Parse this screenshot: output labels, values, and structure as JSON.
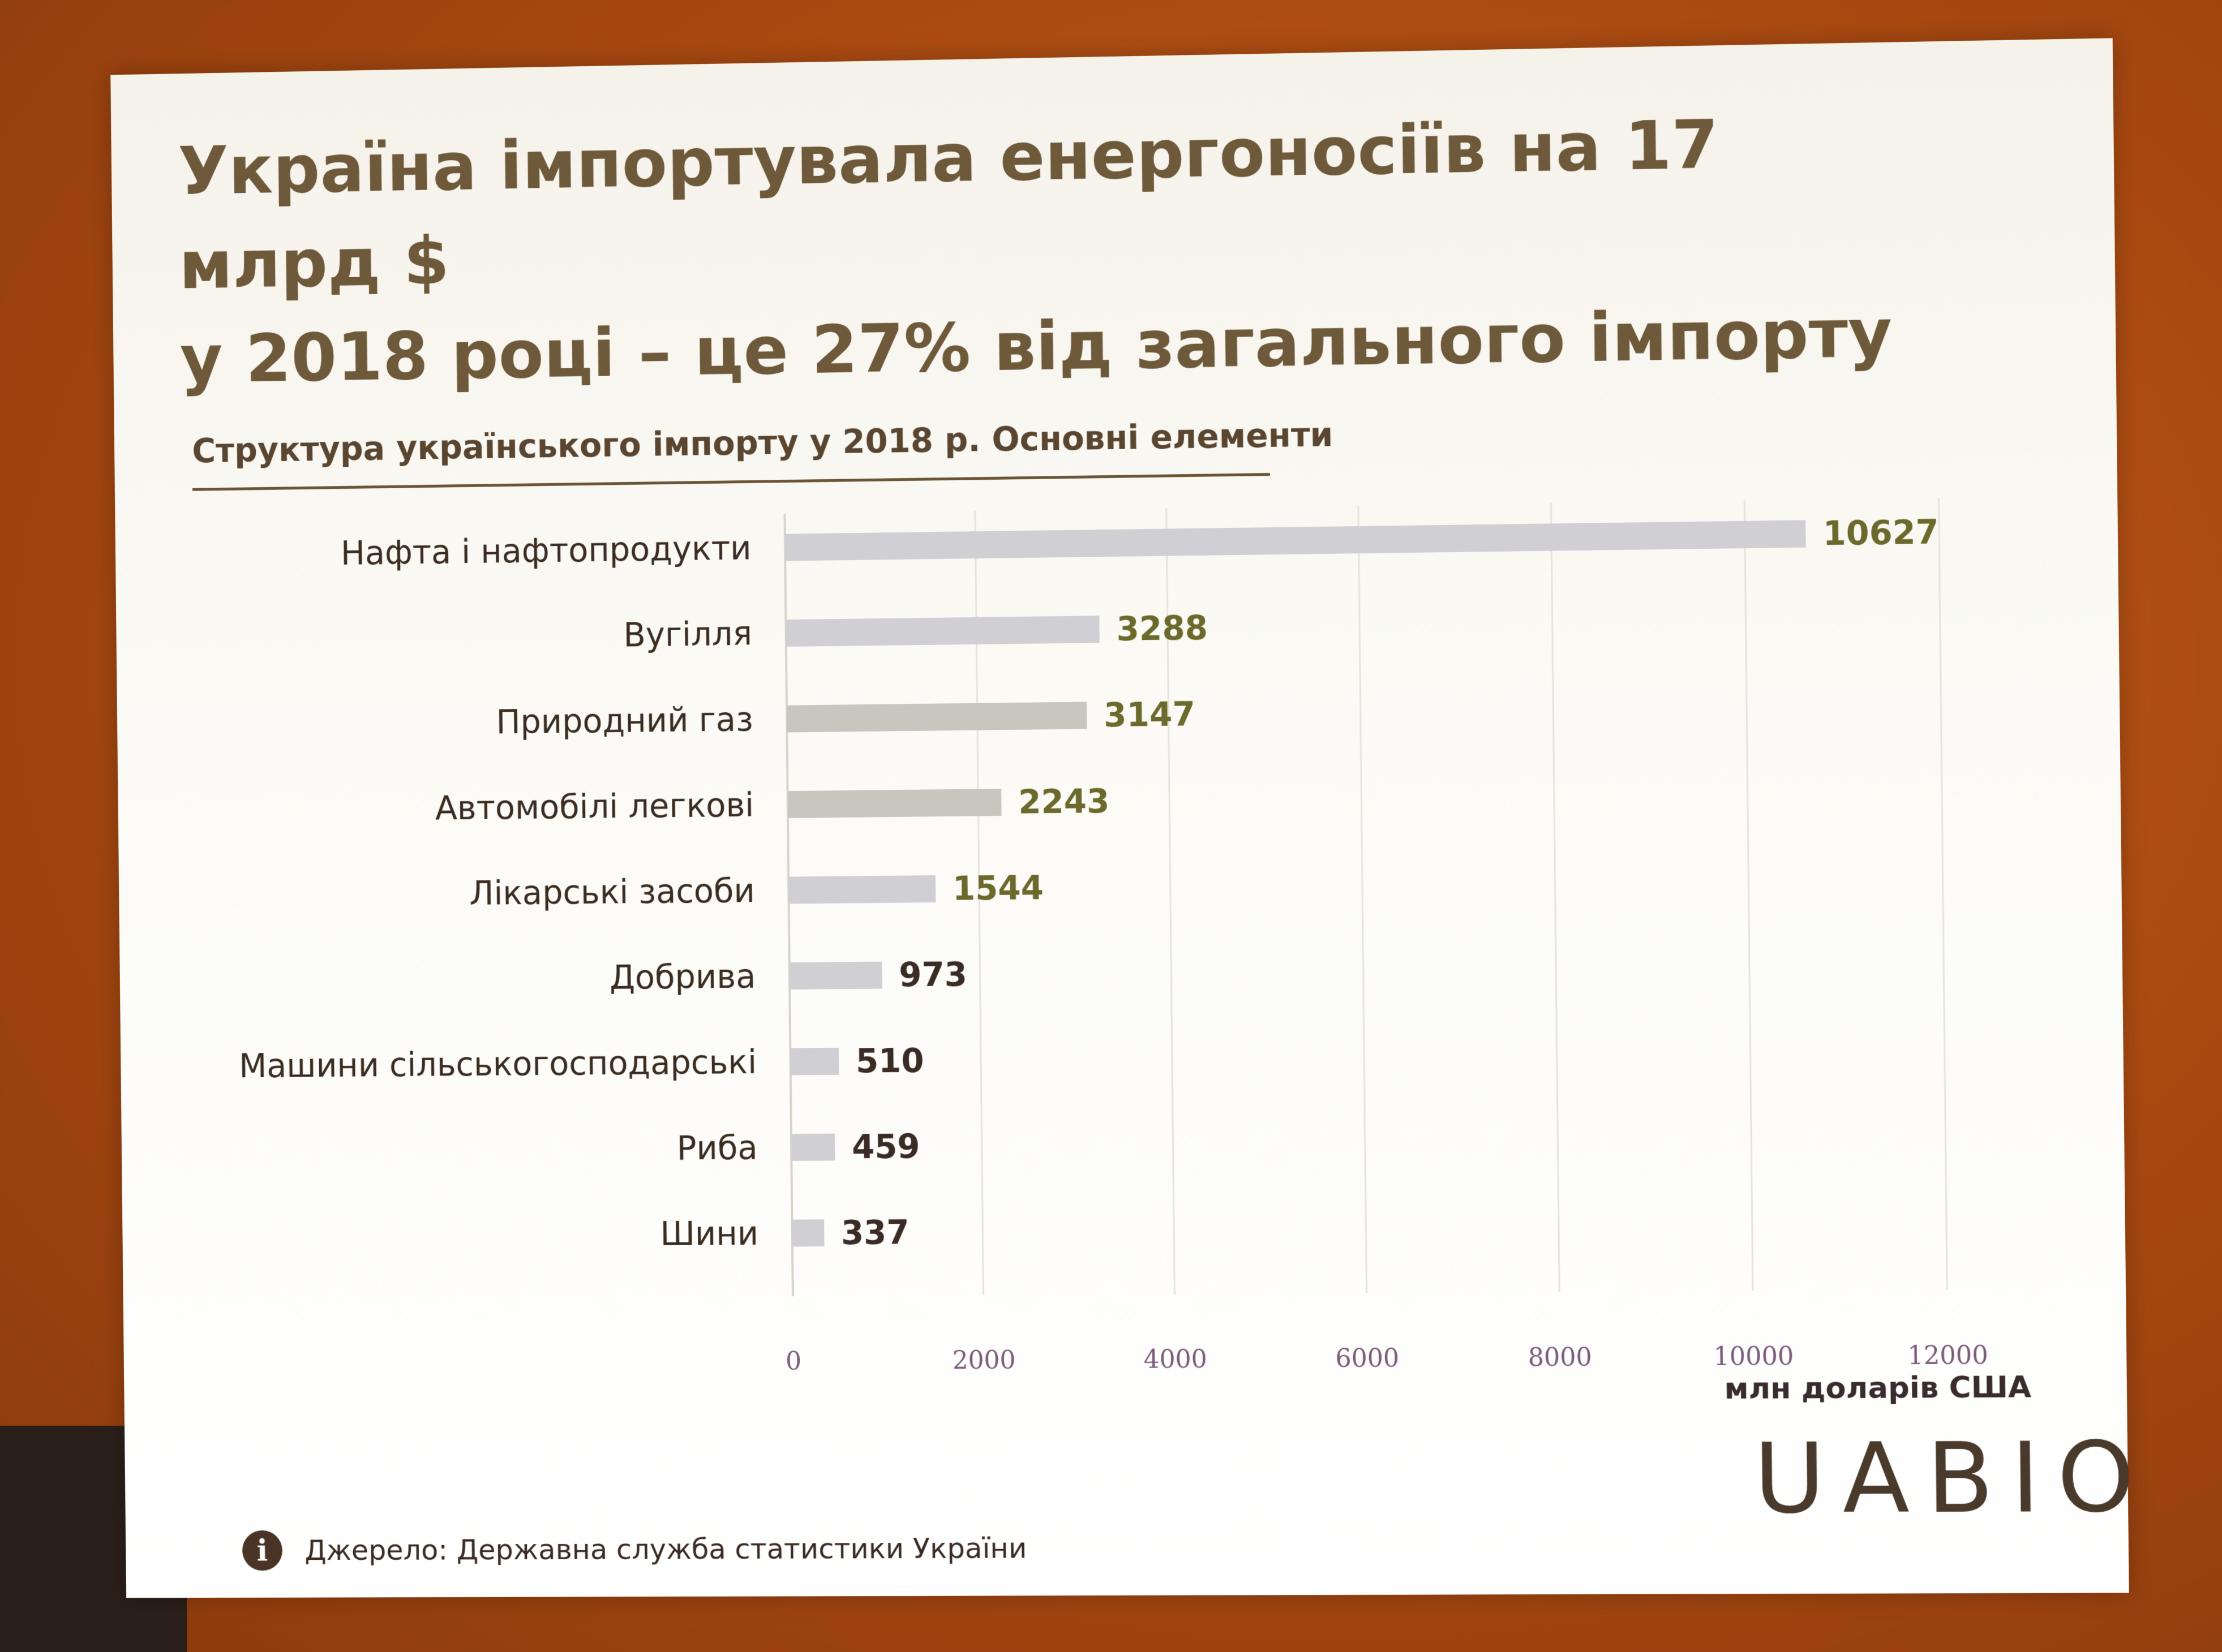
{
  "slide": {
    "title_line1": "Україна імпортувала енергоносіїв на 17 млрд $",
    "title_line2": "у 2018 році – це 27% від загального імпорту",
    "source_text": "Джерело: Державна служба статистики України",
    "info_icon": "info-icon",
    "logo_text": "UABIO"
  },
  "chart_data": {
    "type": "bar",
    "orientation": "horizontal",
    "title": "Структура українського імпорту у 2018 р. Основні елементи",
    "xlabel": "млн доларів США",
    "ylabel": "",
    "categories": [
      "Нафта і нафтопродукти",
      "Вугілля",
      "Природний газ",
      "Автомобілі легкові",
      "Лікарські засоби",
      "Добрива",
      "Машини сільськогосподарські",
      "Риба",
      "Шини"
    ],
    "values": [
      10627,
      3288,
      3147,
      2243,
      1544,
      973,
      510,
      459,
      337
    ],
    "xlim": [
      0,
      12000
    ],
    "xticks": [
      0,
      2000,
      4000,
      6000,
      8000,
      10000,
      12000
    ],
    "grid": true,
    "legend": "none",
    "bar_colors": [
      "#cfcfd4",
      "#cfcfd4",
      "#c9c6bf",
      "#c9c6bf",
      "#cfcfd4",
      "#cfcfd4",
      "#cfcfd4",
      "#cfcfd4",
      "#cfcfd4"
    ],
    "value_colors": [
      "#6b6a2c",
      "#6b6a2c",
      "#6b6a2c",
      "#6b6a2c",
      "#6b6a2c",
      "#3a2c24",
      "#3a2c24",
      "#3a2c24",
      "#3a2c24"
    ],
    "grid_color": "#e6e3dc",
    "axis_color": "#d8d4cc"
  }
}
